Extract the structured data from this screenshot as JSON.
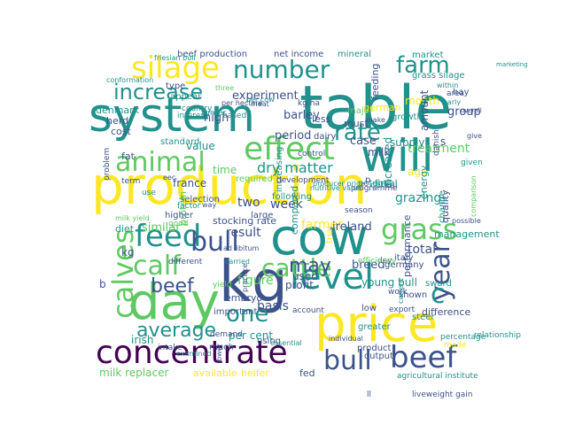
{
  "image": {
    "type": "word-cloud",
    "background": "#ffffff",
    "palette": [
      "#440154",
      "#3b528b",
      "#21918c",
      "#5ec962",
      "#fde725"
    ]
  },
  "words": [
    {
      "text": "production",
      "color": "#fde725"
    },
    {
      "text": "table",
      "color": "#21918c"
    },
    {
      "text": "system",
      "color": "#21918c"
    },
    {
      "text": "cow",
      "color": "#21918c"
    },
    {
      "text": "kg",
      "color": "#3b528b"
    },
    {
      "text": "price",
      "color": "#fde725"
    },
    {
      "text": "day",
      "color": "#5ec962"
    },
    {
      "text": "will",
      "color": "#21918c"
    },
    {
      "text": "concentrate",
      "color": "#440154"
    },
    {
      "text": "silage",
      "color": "#fde725"
    },
    {
      "text": "effect",
      "color": "#5ec962"
    },
    {
      "text": "feed",
      "color": "#21918c"
    },
    {
      "text": "calf",
      "color": "#5ec962"
    },
    {
      "text": "level",
      "color": "#21918c"
    },
    {
      "text": "bull",
      "color": "#3b528b"
    },
    {
      "text": "beef",
      "color": "#3b528b"
    },
    {
      "text": "calves",
      "color": "#5ec962"
    },
    {
      "text": "year",
      "color": "#3b528b"
    },
    {
      "text": "animal",
      "color": "#5ec962"
    },
    {
      "text": "grass",
      "color": "#5ec962"
    },
    {
      "text": "number",
      "color": "#21918c"
    },
    {
      "text": "farm",
      "color": "#21918c"
    },
    {
      "text": "rate",
      "color": "#21918c"
    },
    {
      "text": "increase",
      "color": "#21918c"
    },
    {
      "text": "cattle",
      "color": "#5ec962"
    },
    {
      "text": "may",
      "color": "#3b528b"
    },
    {
      "text": "c",
      "color": "#21918c"
    },
    {
      "text": "bull",
      "color": "#3b528b"
    },
    {
      "text": "beef",
      "color": "#3b528b"
    },
    {
      "text": "one",
      "color": "#21918c"
    },
    {
      "text": "average",
      "color": "#21918c"
    },
    {
      "text": "dry matter",
      "color": "#21918c"
    },
    {
      "text": "result",
      "color": "#3b528b"
    },
    {
      "text": "experiment",
      "color": "#3b528b"
    },
    {
      "text": "high",
      "color": "#3b528b"
    },
    {
      "text": "value",
      "color": "#21918c"
    },
    {
      "text": "time",
      "color": "#5ec962"
    },
    {
      "text": "barley",
      "color": "#3b528b"
    },
    {
      "text": "period",
      "color": "#3b528b"
    },
    {
      "text": "milk",
      "color": "#3b528b"
    },
    {
      "text": "case",
      "color": "#3b528b"
    },
    {
      "text": "treatment",
      "color": "#5ec962"
    },
    {
      "text": "week",
      "color": "#3b528b"
    },
    {
      "text": "two",
      "color": "#3b528b"
    },
    {
      "text": "farmer",
      "color": "#fde725"
    },
    {
      "text": "ireland",
      "color": "#3b528b"
    },
    {
      "text": "breed",
      "color": "#3b528b"
    },
    {
      "text": "total",
      "color": "#3b528b"
    },
    {
      "text": "performance",
      "color": "#3b528b"
    },
    {
      "text": "young bull",
      "color": "#21918c"
    },
    {
      "text": "similar",
      "color": "#5ec962"
    },
    {
      "text": "stocking rate",
      "color": "#3b528b"
    },
    {
      "text": "diet",
      "color": "#21918c"
    },
    {
      "text": "used",
      "color": "#3b528b"
    },
    {
      "text": "profit",
      "color": "#3b528b"
    },
    {
      "text": "figure",
      "color": "#5ec962"
    },
    {
      "text": "embryo",
      "color": "#3b528b"
    },
    {
      "text": "difference",
      "color": "#3b528b"
    },
    {
      "text": "basis",
      "color": "#3b528b"
    },
    {
      "text": "per cent",
      "color": "#21918c"
    },
    {
      "text": "irish",
      "color": "#21918c"
    },
    {
      "text": "milk replacer",
      "color": "#5ec962"
    },
    {
      "text": "available",
      "color": "#fde725"
    },
    {
      "text": "heifer",
      "color": "#fde725"
    },
    {
      "text": "fed",
      "color": "#3b528b"
    },
    {
      "text": "herd",
      "color": "#3b528b"
    },
    {
      "text": "cost",
      "color": "#3b528b"
    },
    {
      "text": "denmark",
      "color": "#21918c"
    },
    {
      "text": "fat",
      "color": "#3b528b"
    },
    {
      "text": "france",
      "color": "#3b528b"
    },
    {
      "text": "month",
      "color": "#fde725"
    },
    {
      "text": "supply",
      "color": "#21918c"
    },
    {
      "text": "feeding",
      "color": "#3b528b"
    },
    {
      "text": "group",
      "color": "#3b528b"
    },
    {
      "text": "amount",
      "color": "#3b528b"
    },
    {
      "text": "grazing",
      "color": "#21918c"
    },
    {
      "text": "age",
      "color": "#fde725"
    },
    {
      "text": "increased",
      "color": "#21918c"
    },
    {
      "text": "s",
      "color": "#3b528b"
    },
    {
      "text": "must",
      "color": "#3b528b"
    },
    {
      "text": "less",
      "color": "#3b528b"
    },
    {
      "text": "net income",
      "color": "#3b528b"
    },
    {
      "text": "beef production",
      "color": "#3b528b"
    },
    {
      "text": "mineral",
      "color": "#21918c"
    },
    {
      "text": "market",
      "color": "#21918c"
    },
    {
      "text": "dairy",
      "color": "#3b528b"
    },
    {
      "text": "major",
      "color": "#5ec962"
    },
    {
      "text": "german",
      "color": "#fde725"
    },
    {
      "text": "growth",
      "color": "#21918c"
    },
    {
      "text": "grass silage",
      "color": "#21918c"
    },
    {
      "text": "hay",
      "color": "#3b528b"
    },
    {
      "text": "type",
      "color": "#3b528b"
    },
    {
      "text": "appear",
      "color": "#21918c"
    },
    {
      "text": "selection",
      "color": "#3b528b"
    },
    {
      "text": "factor",
      "color": "#21918c"
    },
    {
      "text": "standard",
      "color": "#21918c"
    },
    {
      "text": "required",
      "color": "#5ec962"
    },
    {
      "text": "protein",
      "color": "#5ec962"
    },
    {
      "text": "higher",
      "color": "#3b528b"
    },
    {
      "text": "good",
      "color": "#5ec962"
    },
    {
      "text": "large",
      "color": "#3b528b"
    },
    {
      "text": "following",
      "color": "#21918c"
    },
    {
      "text": "increasing",
      "color": "#21918c"
    },
    {
      "text": "compared",
      "color": "#21918c"
    },
    {
      "text": "trial",
      "color": "#fde725"
    },
    {
      "text": "potential",
      "color": "#21918c"
    },
    {
      "text": "cereal",
      "color": "#21918c"
    },
    {
      "text": "first",
      "color": "#21918c"
    },
    {
      "text": "p",
      "color": "#3b528b"
    },
    {
      "text": "quality",
      "color": "#3b528b"
    },
    {
      "text": "energy",
      "color": "#21918c"
    },
    {
      "text": "management",
      "color": "#21918c"
    },
    {
      "text": "change",
      "color": "#21918c"
    },
    {
      "text": "sward",
      "color": "#21918c"
    },
    {
      "text": "italy",
      "color": "#3b528b"
    },
    {
      "text": "germany",
      "color": "#3b528b"
    },
    {
      "text": "shown",
      "color": "#3b528b"
    },
    {
      "text": "steer",
      "color": "#21918c"
    },
    {
      "text": "low",
      "color": "#3b528b"
    },
    {
      "text": "greater",
      "color": "#21918c"
    },
    {
      "text": "product",
      "color": "#3b528b"
    },
    {
      "text": "output",
      "color": "#3b528b"
    },
    {
      "text": "using",
      "color": "#3b528b"
    },
    {
      "text": "much",
      "color": "#3b528b"
    },
    {
      "text": "intake",
      "color": "#3b528b"
    },
    {
      "text": "demand",
      "color": "#3b528b"
    },
    {
      "text": "yield",
      "color": "#5ec962"
    },
    {
      "text": "important",
      "color": "#3b528b"
    },
    {
      "text": "b",
      "color": "#3b528b"
    },
    {
      "text": "kg",
      "color": "#3b528b"
    },
    {
      "text": "day",
      "color": "#3b528b"
    },
    {
      "text": "ll",
      "color": "#3b528b"
    },
    {
      "text": "liveweight gain",
      "color": "#3b528b"
    },
    {
      "text": "agricultural institute",
      "color": "#21918c"
    },
    {
      "text": "made",
      "color": "#fde725"
    },
    {
      "text": "relationship",
      "color": "#21918c"
    },
    {
      "text": "percentage",
      "color": "#21918c"
    },
    {
      "text": "given",
      "color": "#21918c"
    },
    {
      "text": "give",
      "color": "#3b528b"
    },
    {
      "text": "area",
      "color": "#3b528b"
    },
    {
      "text": "within",
      "color": "#21918c"
    },
    {
      "text": "marketing",
      "color": "#21918c"
    },
    {
      "text": "country",
      "color": "#21918c"
    },
    {
      "text": "interest",
      "color": "#21918c"
    },
    {
      "text": "three",
      "color": "#5ec962"
    },
    {
      "text": "conformation",
      "color": "#21918c"
    },
    {
      "text": "friesian bull",
      "color": "#21918c"
    },
    {
      "text": "kg ha",
      "color": "#3b528b"
    },
    {
      "text": "based",
      "color": "#21918c"
    },
    {
      "text": "problem",
      "color": "#3b528b"
    },
    {
      "text": "term",
      "color": "#3b528b"
    },
    {
      "text": "use",
      "color": "#21918c"
    },
    {
      "text": "milk yield",
      "color": "#5ec962"
    },
    {
      "text": "different",
      "color": "#3b528b"
    },
    {
      "text": "eec",
      "color": "#3b528b"
    },
    {
      "text": "way",
      "color": "#3b528b"
    },
    {
      "text": "development",
      "color": "#3b528b"
    },
    {
      "text": "season",
      "color": "#3b528b"
    },
    {
      "text": "programme",
      "color": "#3b528b"
    },
    {
      "text": "nutritive value",
      "color": "#21918c"
    },
    {
      "text": "control",
      "color": "#3b528b"
    },
    {
      "text": "possible",
      "color": "#3b528b"
    },
    {
      "text": "comparison",
      "color": "#5ec962"
    },
    {
      "text": "efficiency",
      "color": "#5ec962"
    },
    {
      "text": "ad libitum",
      "color": "#3b528b"
    },
    {
      "text": "carried",
      "color": "#21918c"
    },
    {
      "text": "practice",
      "color": "#3b528b"
    },
    {
      "text": "account",
      "color": "#3b528b"
    },
    {
      "text": "individual",
      "color": "#3b528b"
    },
    {
      "text": "essential",
      "color": "#21918c"
    },
    {
      "text": "examined",
      "color": "#21918c"
    },
    {
      "text": "lower",
      "color": "#3b528b"
    },
    {
      "text": "work",
      "color": "#3b528b"
    },
    {
      "text": "current",
      "color": "#21918c"
    },
    {
      "text": "export",
      "color": "#3b528b"
    },
    {
      "text": "make",
      "color": "#3b528b"
    },
    {
      "text": "overall",
      "color": "#3b528b"
    },
    {
      "text": "danish",
      "color": "#3b528b"
    },
    {
      "text": "per hectare",
      "color": "#3b528b"
    },
    {
      "text": "per cow",
      "color": "#21918c"
    },
    {
      "text": "meat",
      "color": "#3b528b"
    },
    {
      "text": "winter",
      "color": "#21918c"
    },
    {
      "text": "producer price",
      "color": "#21918c"
    },
    {
      "text": "early",
      "color": "#21918c"
    },
    {
      "text": "dn",
      "color": "#3b528b"
    },
    {
      "text": "allow",
      "color": "#3b528b"
    },
    {
      "text": "present",
      "color": "#3b528b"
    }
  ]
}
